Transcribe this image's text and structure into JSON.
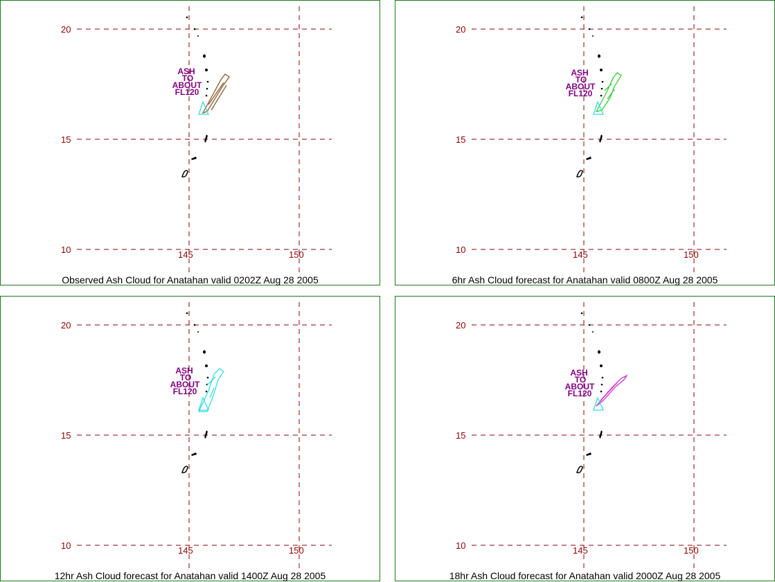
{
  "panels": [
    {
      "id": "p1",
      "caption": "Observed Ash Cloud for Anatahan valid 0202Z Aug 28 2005",
      "cloud_color": "#8b5a2b",
      "has_label": true
    },
    {
      "id": "p2",
      "caption": "6hr Ash Cloud forecast for Anatahan valid 0800Z Aug 28 2005",
      "cloud_color": "#33cc33",
      "has_label": true
    },
    {
      "id": "p3",
      "caption": "12hr Ash Cloud forecast for Anatahan valid 1400Z Aug 28 2005",
      "cloud_color": "#33dddd",
      "has_label": true
    },
    {
      "id": "p4",
      "caption": "18hr Ash Cloud forecast for Anatahan valid 2000Z Aug 28 2005",
      "cloud_color": "#cc33cc",
      "has_label": true
    }
  ],
  "axes": {
    "lat_labels": [
      "20",
      "15",
      "10"
    ],
    "lon_labels": [
      "145",
      "150"
    ]
  },
  "ash_label_lines": [
    "ASH",
    "TO",
    "ABOUT",
    "FL120"
  ],
  "source_polygon_color": "#33dddd",
  "grid_color": "#8b0000",
  "border_color": "#1a7a1a",
  "label_color": "#800080"
}
